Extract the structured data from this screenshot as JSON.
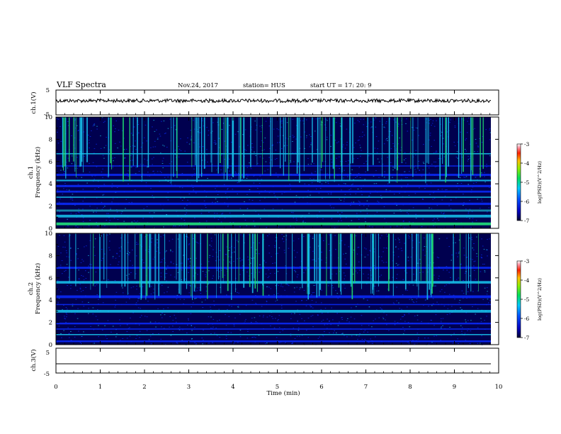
{
  "header": {
    "title": "VLF Spectra",
    "date": "Nov.24, 2017",
    "station": "station= HUS",
    "start": "start  UT  =   17: 20: 9"
  },
  "chart_data": [
    {
      "type": "line",
      "panel": "ch1-waveform",
      "ylabel": "ch.1(V)",
      "ylim": [
        -5,
        5
      ],
      "yticks": [
        "5",
        "-5"
      ],
      "x": [
        0,
        9.83
      ],
      "description_level": 0,
      "color": "#000000"
    },
    {
      "type": "heatmap",
      "panel": "ch1-spectrogram",
      "ylabel": "ch.1\nFrequency (kHz)",
      "ylabel_lines": [
        "ch.1",
        "Frequency (kHz)"
      ],
      "ylim": [
        0,
        10
      ],
      "yticks": [
        "0",
        "2",
        "4",
        "6",
        "8",
        "10"
      ],
      "xlim": [
        0,
        9.83
      ],
      "bands_khz": [
        0.4,
        1.1,
        1.6,
        2.2,
        2.8,
        3.3,
        3.8,
        4.3,
        4.8,
        5.6,
        6.7
      ],
      "colorbar": {
        "label": "log(PSD)(V^2/Hz)",
        "ticks": [
          "-3",
          "-4",
          "-5",
          "-6",
          "-7"
        ],
        "range": [
          -7,
          -3
        ]
      }
    },
    {
      "type": "heatmap",
      "panel": "ch2-spectrogram",
      "ylabel": "ch.2\nFrequency (kHz)",
      "ylabel_lines": [
        "ch.2",
        "Frequency (kHz)"
      ],
      "ylim": [
        0,
        10
      ],
      "yticks": [
        "0",
        "2",
        "4",
        "6",
        "8",
        "10"
      ],
      "xlim": [
        0,
        9.83
      ],
      "bands_khz": [
        0.3,
        0.9,
        1.4,
        1.9,
        3.0,
        3.6,
        4.3,
        5.6,
        6.9
      ],
      "colorbar": {
        "label": "log(PSD)(V^2/Hz)",
        "ticks": [
          "-3",
          "-4",
          "-5",
          "-6",
          "-7"
        ],
        "range": [
          -7,
          -3
        ]
      }
    },
    {
      "type": "line",
      "panel": "ch3-waveform",
      "ylabel": "ch.3(V)",
      "ylim": [
        -5,
        5
      ],
      "yticks": [
        "5",
        "-5"
      ],
      "x": [
        0,
        9.83
      ],
      "description_level": -1,
      "color": "#000000"
    }
  ],
  "xaxis": {
    "label": "Time  (min)",
    "ticks": [
      "0",
      "1",
      "2",
      "3",
      "4",
      "5",
      "6",
      "7",
      "8",
      "9",
      "10"
    ],
    "range": [
      0,
      10
    ]
  },
  "colors": {
    "background": "#ffffff",
    "dark": "#00004f",
    "blue": "#0a2cff",
    "cyan": "#18c8f0",
    "green": "#20e070"
  }
}
